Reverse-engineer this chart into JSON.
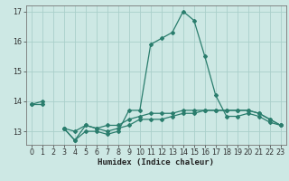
{
  "xlabel": "Humidex (Indice chaleur)",
  "x_values": [
    0,
    1,
    2,
    3,
    4,
    5,
    6,
    7,
    8,
    9,
    10,
    11,
    12,
    13,
    14,
    15,
    16,
    17,
    18,
    19,
    20,
    21,
    22,
    23
  ],
  "line1": [
    13.9,
    14.0,
    null,
    13.1,
    12.7,
    13.0,
    13.0,
    12.9,
    13.0,
    13.7,
    13.7,
    15.9,
    16.1,
    16.3,
    17.0,
    16.7,
    15.5,
    14.2,
    13.5,
    13.5,
    13.6,
    13.5,
    13.3,
    13.2
  ],
  "line2": [
    null,
    null,
    null,
    13.1,
    12.7,
    13.2,
    13.1,
    13.0,
    13.1,
    13.2,
    13.4,
    13.4,
    13.4,
    13.5,
    13.6,
    13.6,
    13.7,
    13.7,
    13.7,
    13.7,
    13.7,
    13.6,
    13.4,
    13.2
  ],
  "line3": [
    13.9,
    13.9,
    null,
    13.1,
    13.0,
    13.2,
    13.1,
    13.2,
    13.2,
    13.4,
    13.5,
    13.6,
    13.6,
    13.6,
    13.7,
    13.7,
    13.7,
    13.7,
    13.7,
    13.7,
    13.7,
    13.6,
    13.4,
    13.2
  ],
  "line_color": "#2a7d6d",
  "bg_color": "#cde8e4",
  "grid_color": "#aacfca",
  "ylim": [
    12.55,
    17.2
  ],
  "yticks": [
    13,
    14,
    15,
    16,
    17
  ],
  "xlim": [
    -0.5,
    23.5
  ],
  "xticks": [
    0,
    1,
    2,
    3,
    4,
    5,
    6,
    7,
    8,
    9,
    10,
    11,
    12,
    13,
    14,
    15,
    16,
    17,
    18,
    19,
    20,
    21,
    22,
    23
  ],
  "xlabel_fontsize": 6.5,
  "tick_labelsize": 5.8,
  "lw": 0.9,
  "ms": 2.0
}
